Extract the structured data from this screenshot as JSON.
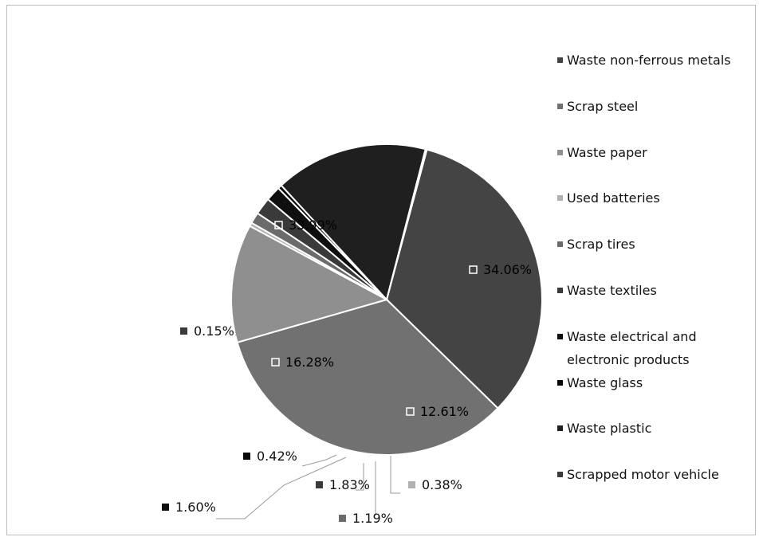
{
  "chart_data": {
    "type": "pie",
    "title": "",
    "legend_position": "right",
    "slices": [
      {
        "name": "Waste non-ferrous metals",
        "value": 33.99,
        "label": "33.99%",
        "color": "#444444"
      },
      {
        "name": "Scrap steel",
        "value": 34.06,
        "label": "34.06%",
        "color": "#717171"
      },
      {
        "name": "Waste paper",
        "value": 12.61,
        "label": "12.61%",
        "color": "#8f8f8f"
      },
      {
        "name": "Used batteries",
        "value": 0.38,
        "label": "0.38%",
        "color": "#b1b1b1"
      },
      {
        "name": "Scrap tires",
        "value": 1.19,
        "label": "1.19%",
        "color": "#6b6b6b"
      },
      {
        "name": "Waste textiles",
        "value": 1.83,
        "label": "1.83%",
        "color": "#3a3a3a"
      },
      {
        "name": "Waste electrical and electronic products",
        "value": 1.6,
        "label": "1.60%",
        "color": "#0f0f0f"
      },
      {
        "name": "Waste glass",
        "value": 0.42,
        "label": "0.42%",
        "color": "#090909"
      },
      {
        "name": "Waste plastic",
        "value": 16.28,
        "label": "16.28%",
        "color": "#1f1f1f"
      },
      {
        "name": "Scrapped motor vehicle",
        "value": 0.15,
        "label": "0.15%",
        "color": "#3b3b3b"
      }
    ]
  }
}
